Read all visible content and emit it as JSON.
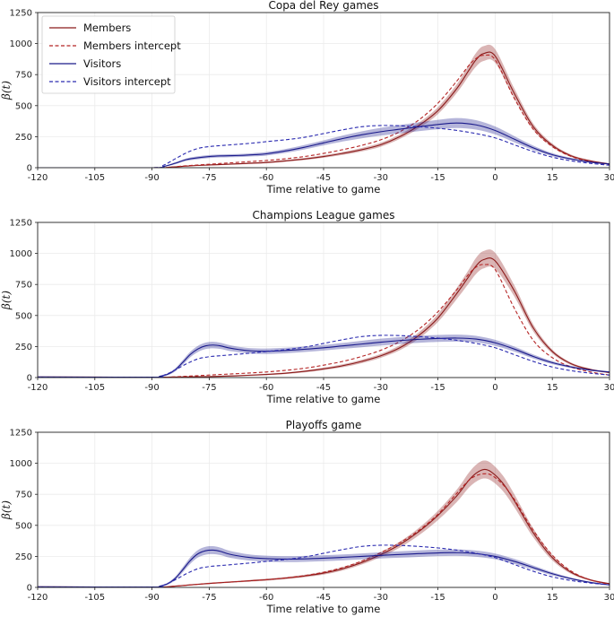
{
  "chart_data": [
    {
      "type": "line",
      "title": "Copa del Rey games",
      "xlabel": "Time relative to game",
      "ylabel": "β(t)",
      "xlim": [
        -120,
        30
      ],
      "ylim": [
        0,
        1250
      ],
      "xticks": [
        "-120",
        "-105",
        "-90",
        "-75",
        "-60",
        "-45",
        "-30",
        "-15",
        "0",
        "15",
        "30"
      ],
      "yticks": [
        "0",
        "250",
        "500",
        "750",
        "1000",
        "1250"
      ],
      "grid": true,
      "legend": {
        "position": "top-left",
        "entries": [
          "Members",
          "Members intercept",
          "Visitors",
          "Visitors intercept"
        ]
      },
      "series": [
        {
          "name": "Members",
          "color": "#8b1a1a",
          "style": "solid",
          "band": true,
          "x": [
            -120,
            -90,
            -85,
            -80,
            -75,
            -70,
            -65,
            -60,
            -55,
            -50,
            -45,
            -40,
            -35,
            -30,
            -25,
            -20,
            -15,
            -10,
            -7,
            -5,
            -3,
            0,
            5,
            10,
            15,
            20,
            25,
            30
          ],
          "y": [
            0,
            0,
            5,
            15,
            22,
            28,
            35,
            42,
            55,
            70,
            90,
            115,
            145,
            185,
            250,
            340,
            460,
            640,
            780,
            870,
            920,
            900,
            600,
            330,
            180,
            95,
            55,
            30
          ],
          "band_width": [
            0,
            0,
            2,
            4,
            5,
            5,
            6,
            7,
            8,
            9,
            10,
            12,
            14,
            16,
            18,
            22,
            28,
            35,
            45,
            55,
            60,
            55,
            40,
            25,
            15,
            10,
            6,
            4
          ]
        },
        {
          "name": "Members intercept",
          "color": "#b52525",
          "style": "dashed",
          "band": false,
          "x": [
            -120,
            -90,
            -85,
            -80,
            -75,
            -70,
            -65,
            -60,
            -55,
            -50,
            -45,
            -40,
            -35,
            -30,
            -25,
            -20,
            -15,
            -10,
            -7,
            -5,
            -3,
            0,
            5,
            10,
            15,
            20,
            25,
            30
          ],
          "y": [
            0,
            0,
            6,
            18,
            28,
            38,
            48,
            58,
            72,
            90,
            115,
            145,
            180,
            225,
            290,
            385,
            520,
            700,
            820,
            880,
            905,
            870,
            560,
            310,
            170,
            90,
            50,
            25
          ]
        },
        {
          "name": "Visitors",
          "color": "#1a1a8b",
          "style": "solid",
          "band": true,
          "x": [
            -120,
            -90,
            -87,
            -84,
            -81,
            -78,
            -75,
            -72,
            -69,
            -66,
            -63,
            -60,
            -55,
            -50,
            -45,
            -40,
            -35,
            -30,
            -25,
            -20,
            -15,
            -10,
            -5,
            0,
            5,
            10,
            15,
            20,
            25,
            30
          ],
          "y": [
            0,
            0,
            10,
            35,
            65,
            80,
            90,
            95,
            97,
            100,
            105,
            112,
            135,
            165,
            200,
            235,
            265,
            290,
            310,
            330,
            348,
            360,
            345,
            300,
            230,
            160,
            105,
            70,
            45,
            30
          ],
          "band_width": [
            0,
            0,
            3,
            8,
            10,
            12,
            12,
            12,
            12,
            12,
            13,
            14,
            16,
            18,
            20,
            24,
            28,
            32,
            34,
            36,
            38,
            40,
            38,
            32,
            25,
            18,
            12,
            8,
            6,
            4
          ]
        },
        {
          "name": "Visitors intercept",
          "color": "#2a2ab0",
          "style": "dashed",
          "band": false,
          "x": [
            -120,
            -90,
            -87,
            -84,
            -81,
            -78,
            -75,
            -72,
            -69,
            -66,
            -63,
            -60,
            -55,
            -50,
            -45,
            -40,
            -35,
            -30,
            -25,
            -20,
            -15,
            -10,
            -5,
            0,
            5,
            10,
            15,
            20,
            25,
            30
          ],
          "y": [
            0,
            0,
            20,
            70,
            120,
            155,
            170,
            178,
            185,
            192,
            200,
            210,
            225,
            245,
            275,
            305,
            330,
            340,
            338,
            330,
            318,
            300,
            275,
            240,
            185,
            130,
            85,
            55,
            35,
            20
          ]
        }
      ]
    },
    {
      "type": "line",
      "title": "Champions League games",
      "xlabel": "Time relative to game",
      "ylabel": "β(t)",
      "xlim": [
        -120,
        30
      ],
      "ylim": [
        0,
        1250
      ],
      "xticks": [
        "-120",
        "-105",
        "-90",
        "-75",
        "-60",
        "-45",
        "-30",
        "-15",
        "0",
        "15",
        "30"
      ],
      "yticks": [
        "0",
        "250",
        "500",
        "750",
        "1000",
        "1250"
      ],
      "grid": true,
      "series": [
        {
          "name": "Members",
          "color": "#8b1a1a",
          "style": "solid",
          "band": true,
          "x": [
            -120,
            -90,
            -85,
            -80,
            -75,
            -70,
            -65,
            -60,
            -55,
            -50,
            -45,
            -40,
            -35,
            -30,
            -25,
            -20,
            -15,
            -10,
            -7,
            -5,
            -3,
            0,
            5,
            10,
            15,
            20,
            25,
            30
          ],
          "y": [
            5,
            3,
            4,
            6,
            8,
            12,
            18,
            25,
            35,
            50,
            70,
            95,
            130,
            175,
            240,
            340,
            480,
            680,
            810,
            900,
            950,
            940,
            700,
            400,
            210,
            110,
            65,
            40
          ],
          "band_width": [
            2,
            2,
            2,
            3,
            4,
            5,
            5,
            6,
            7,
            8,
            10,
            12,
            14,
            16,
            20,
            25,
            32,
            45,
            55,
            65,
            70,
            65,
            45,
            28,
            16,
            10,
            7,
            5
          ]
        },
        {
          "name": "Members intercept",
          "color": "#b52525",
          "style": "dashed",
          "band": false,
          "x": [
            -120,
            -90,
            -85,
            -80,
            -75,
            -70,
            -65,
            -60,
            -55,
            -50,
            -45,
            -40,
            -35,
            -30,
            -25,
            -20,
            -15,
            -10,
            -7,
            -5,
            -3,
            0,
            5,
            10,
            15,
            20,
            25,
            30
          ],
          "y": [
            3,
            2,
            5,
            12,
            20,
            28,
            36,
            45,
            58,
            75,
            100,
            130,
            170,
            220,
            290,
            390,
            530,
            710,
            830,
            890,
            910,
            870,
            560,
            300,
            160,
            85,
            45,
            20
          ]
        },
        {
          "name": "Visitors",
          "color": "#1a1a8b",
          "style": "solid",
          "band": true,
          "x": [
            -120,
            -90,
            -88,
            -86,
            -84,
            -82,
            -80,
            -78,
            -76,
            -74,
            -72,
            -70,
            -67,
            -64,
            -60,
            -55,
            -50,
            -45,
            -40,
            -35,
            -30,
            -25,
            -20,
            -15,
            -10,
            -5,
            0,
            5,
            10,
            15,
            20,
            25,
            30
          ],
          "y": [
            5,
            3,
            10,
            25,
            60,
            120,
            185,
            230,
            255,
            262,
            255,
            240,
            225,
            215,
            212,
            218,
            228,
            240,
            255,
            270,
            285,
            298,
            308,
            315,
            318,
            310,
            280,
            230,
            170,
            120,
            85,
            60,
            45
          ],
          "band_width": [
            2,
            2,
            4,
            8,
            12,
            18,
            22,
            25,
            26,
            26,
            25,
            24,
            22,
            22,
            22,
            22,
            22,
            22,
            24,
            26,
            28,
            28,
            28,
            28,
            28,
            26,
            24,
            20,
            16,
            12,
            9,
            7,
            5
          ]
        },
        {
          "name": "Visitors intercept",
          "color": "#2a2ab0",
          "style": "dashed",
          "band": false,
          "x": [
            -120,
            -90,
            -87,
            -84,
            -81,
            -78,
            -75,
            -72,
            -69,
            -66,
            -63,
            -60,
            -55,
            -50,
            -45,
            -40,
            -35,
            -30,
            -25,
            -20,
            -15,
            -10,
            -5,
            0,
            5,
            10,
            15,
            20,
            25,
            30
          ],
          "y": [
            3,
            2,
            18,
            60,
            110,
            150,
            168,
            176,
            184,
            192,
            200,
            210,
            225,
            245,
            275,
            305,
            330,
            340,
            338,
            330,
            318,
            300,
            275,
            240,
            185,
            130,
            85,
            55,
            35,
            20
          ]
        }
      ]
    },
    {
      "type": "line",
      "title": "Playoffs game",
      "xlabel": "Time relative to game",
      "ylabel": "β(t)",
      "xlim": [
        -120,
        30
      ],
      "ylim": [
        0,
        1250
      ],
      "xticks": [
        "-120",
        "-105",
        "-90",
        "-75",
        "-60",
        "-45",
        "-30",
        "-15",
        "0",
        "15",
        "30"
      ],
      "yticks": [
        "0",
        "250",
        "500",
        "750",
        "1000",
        "1250"
      ],
      "grid": true,
      "series": [
        {
          "name": "Members",
          "color": "#8b1a1a",
          "style": "solid",
          "band": true,
          "x": [
            -120,
            -90,
            -85,
            -80,
            -75,
            -70,
            -65,
            -60,
            -55,
            -50,
            -45,
            -40,
            -35,
            -30,
            -25,
            -20,
            -15,
            -10,
            -7,
            -5,
            -3,
            -1,
            2,
            5,
            10,
            15,
            20,
            25,
            30
          ],
          "y": [
            5,
            3,
            8,
            20,
            32,
            42,
            52,
            62,
            75,
            92,
            115,
            150,
            200,
            265,
            345,
            450,
            580,
            740,
            860,
            920,
            950,
            930,
            840,
            700,
            440,
            240,
            120,
            60,
            30
          ],
          "band_width": [
            2,
            2,
            3,
            5,
            6,
            6,
            7,
            8,
            9,
            10,
            12,
            14,
            16,
            20,
            24,
            30,
            38,
            50,
            60,
            68,
            72,
            70,
            62,
            52,
            36,
            22,
            12,
            7,
            5
          ]
        },
        {
          "name": "Members intercept",
          "color": "#b52525",
          "style": "dashed",
          "band": false,
          "x": [
            -120,
            -90,
            -85,
            -80,
            -75,
            -70,
            -65,
            -60,
            -55,
            -50,
            -45,
            -40,
            -35,
            -30,
            -25,
            -20,
            -15,
            -10,
            -7,
            -5,
            -3,
            -1,
            2,
            5,
            10,
            15,
            20,
            25,
            30
          ],
          "y": [
            3,
            2,
            8,
            20,
            32,
            42,
            52,
            62,
            76,
            95,
            122,
            160,
            212,
            280,
            360,
            460,
            590,
            760,
            860,
            900,
            915,
            905,
            830,
            710,
            460,
            260,
            130,
            60,
            25
          ]
        },
        {
          "name": "Visitors",
          "color": "#1a1a8b",
          "style": "solid",
          "band": true,
          "x": [
            -120,
            -90,
            -88,
            -86,
            -84,
            -82,
            -80,
            -78,
            -76,
            -74,
            -72,
            -70,
            -67,
            -64,
            -60,
            -55,
            -50,
            -45,
            -40,
            -35,
            -30,
            -25,
            -20,
            -15,
            -10,
            -5,
            0,
            5,
            10,
            15,
            20,
            25,
            30
          ],
          "y": [
            5,
            3,
            10,
            28,
            70,
            140,
            215,
            270,
            295,
            300,
            290,
            270,
            252,
            240,
            232,
            228,
            230,
            235,
            242,
            250,
            258,
            265,
            272,
            278,
            280,
            272,
            250,
            210,
            160,
            110,
            70,
            40,
            20
          ],
          "band_width": [
            2,
            2,
            4,
            8,
            14,
            20,
            26,
            30,
            32,
            32,
            30,
            28,
            26,
            24,
            24,
            24,
            24,
            24,
            24,
            24,
            25,
            26,
            26,
            26,
            26,
            25,
            23,
            20,
            16,
            12,
            8,
            6,
            4
          ]
        },
        {
          "name": "Visitors intercept",
          "color": "#2a2ab0",
          "style": "dashed",
          "band": false,
          "x": [
            -120,
            -90,
            -87,
            -84,
            -81,
            -78,
            -75,
            -72,
            -69,
            -66,
            -63,
            -60,
            -55,
            -50,
            -45,
            -40,
            -35,
            -30,
            -25,
            -20,
            -15,
            -10,
            -5,
            0,
            5,
            10,
            15,
            20,
            25,
            30
          ],
          "y": [
            3,
            2,
            18,
            60,
            110,
            150,
            168,
            176,
            184,
            192,
            200,
            210,
            225,
            245,
            275,
            305,
            330,
            340,
            338,
            330,
            318,
            300,
            275,
            240,
            185,
            130,
            85,
            55,
            35,
            20
          ]
        }
      ]
    }
  ]
}
